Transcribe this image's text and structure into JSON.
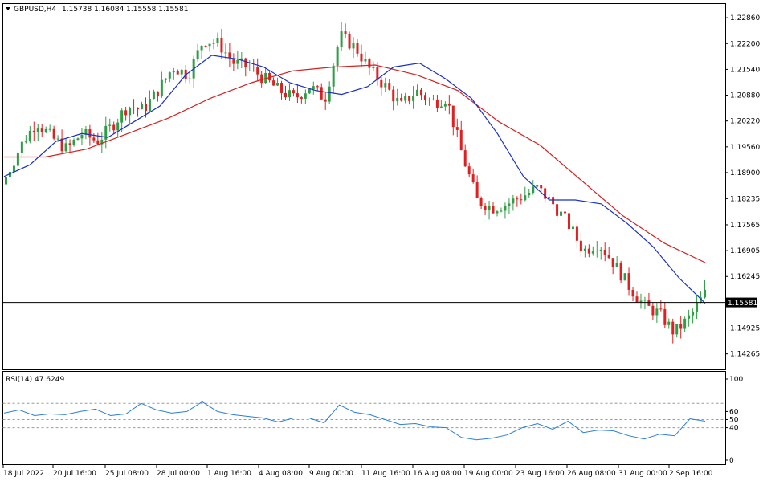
{
  "header": {
    "symbol": "GBPUSD,H4",
    "ohlc": "1.15738 1.16084 1.15558 1.15581"
  },
  "rsi_label": "RSI(14) 47.6249",
  "colors": {
    "bull": "#2e9e45",
    "bear": "#e02020",
    "ma_fast": "#1a2fc8",
    "ma_slow": "#d42020",
    "rsi": "#2a7fd4",
    "price_line": "#000000"
  },
  "chart_data": [
    {
      "type": "candlestick",
      "symbol": "GBPUSD",
      "timeframe": "H4",
      "ylim": [
        1.1395,
        1.2315
      ],
      "y_ticks": [
        "1.22860",
        "1.22200",
        "1.21540",
        "1.20880",
        "1.20220",
        "1.19560",
        "1.18900",
        "1.18235",
        "1.17565",
        "1.16905",
        "1.16245",
        "1.15581",
        "1.14925",
        "1.14265"
      ],
      "current_price": "1.15581",
      "x_ticks": [
        "18 Jul 2022",
        "20 Jul 16:00",
        "25 Jul 08:00",
        "28 Jul 00:00",
        "1 Aug 16:00",
        "4 Aug 08:00",
        "9 Aug 00:00",
        "11 Aug 16:00",
        "16 Aug 08:00",
        "19 Aug 00:00",
        "23 Aug 16:00",
        "26 Aug 08:00",
        "31 Aug 00:00",
        "2 Sep 16:00"
      ],
      "close_path": [
        1.188,
        1.196,
        1.202,
        1.198,
        1.195,
        1.199,
        1.197,
        1.201,
        1.206,
        1.205,
        1.21,
        1.216,
        1.214,
        1.223,
        1.222,
        1.217,
        1.216,
        1.213,
        1.21,
        1.208,
        1.211,
        1.208,
        1.224,
        1.221,
        1.215,
        1.211,
        1.206,
        1.21,
        1.207,
        1.208,
        1.194,
        1.182,
        1.18,
        1.181,
        1.183,
        1.185,
        1.181,
        1.176,
        1.169,
        1.171,
        1.166,
        1.16,
        1.155,
        1.153,
        1.148,
        1.152,
        1.158
      ],
      "close_path_note_units": "price",
      "ma_fast": [
        1.188,
        1.191,
        1.197,
        1.199,
        1.198,
        1.202,
        1.206,
        1.214,
        1.219,
        1.218,
        1.216,
        1.212,
        1.21,
        1.209,
        1.211,
        1.216,
        1.217,
        1.213,
        1.208,
        1.199,
        1.188,
        1.182,
        1.182,
        1.181,
        1.176,
        1.17,
        1.162,
        1.1556
      ],
      "ma_slow": [
        1.193,
        1.193,
        1.195,
        1.199,
        1.203,
        1.208,
        1.212,
        1.215,
        1.216,
        1.2165,
        1.214,
        1.21,
        1.202,
        1.196,
        1.187,
        1.178,
        1.171,
        1.166
      ],
      "rsi_levels": [
        70,
        50,
        40
      ],
      "rsi_ticks": [
        "100",
        "60",
        "50",
        "40",
        "0"
      ],
      "rsi_series": [
        58,
        62,
        55,
        57,
        56,
        60,
        63,
        55,
        57,
        70,
        62,
        58,
        60,
        72,
        60,
        56,
        54,
        52,
        47,
        52,
        52,
        46,
        68,
        59,
        56,
        50,
        44,
        45,
        41,
        40,
        28,
        25,
        27,
        31,
        40,
        45,
        38,
        48,
        34,
        37,
        36,
        30,
        26,
        32,
        30,
        51,
        48
      ]
    }
  ]
}
